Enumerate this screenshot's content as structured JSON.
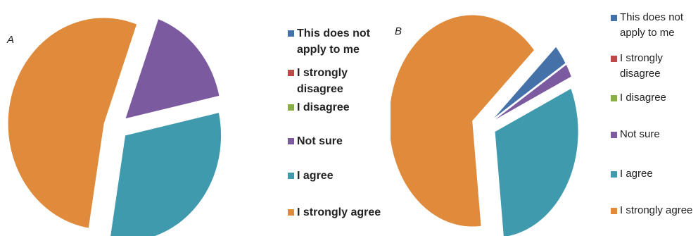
{
  "chart_data": [
    {
      "type": "pie",
      "panel_label": "A",
      "legend_placement": "right",
      "categories": [
        "This does not apply to me",
        "I strongly disagree",
        "I disagree",
        "Not sure",
        "I agree",
        "I strongly agree"
      ],
      "values": [
        0,
        0,
        0,
        16,
        31,
        53
      ],
      "colors": [
        "#4472a8",
        "#b94a48",
        "#8aad4c",
        "#7b5aa0",
        "#3f9aae",
        "#e08a3c"
      ],
      "exploded": true
    },
    {
      "type": "pie",
      "panel_label": "B",
      "legend_placement": "right",
      "categories": [
        "This does not apply to me",
        "I strongly disagree",
        "I disagree",
        "Not sure",
        "I agree",
        "I strongly agree"
      ],
      "values": [
        3,
        0,
        0,
        2,
        30,
        65
      ],
      "colors": [
        "#4472a8",
        "#b94a48",
        "#8aad4c",
        "#7b5aa0",
        "#3f9aae",
        "#e08a3c"
      ],
      "exploded": true
    }
  ]
}
